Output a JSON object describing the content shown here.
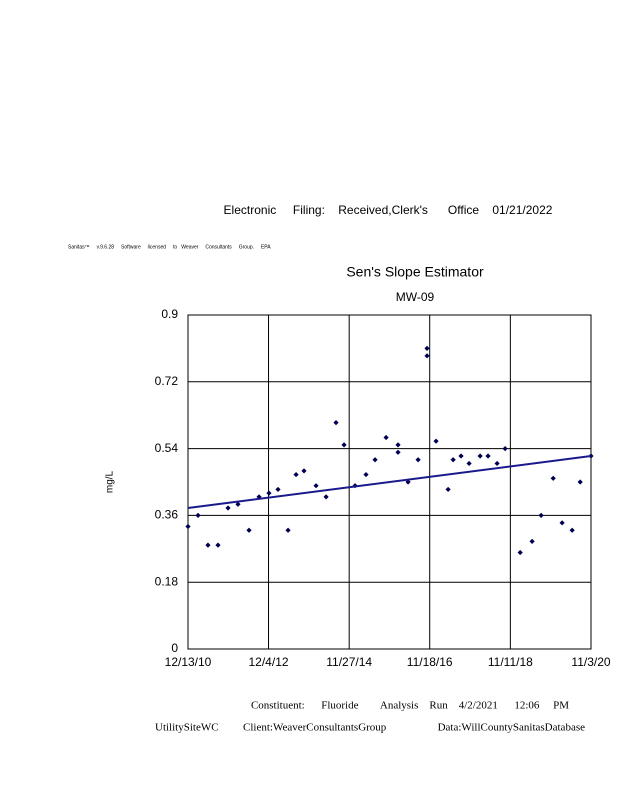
{
  "header": "Electronic     Filing:    Received,Clerk's      Office    01/21/2022",
  "license": "Sanitas™     v.9.6.28     Software     licensed     to   Weaver     Consultants     Group.     EPA",
  "footer": {
    "line1": "Constituent:      Fluoride        Analysis    Run    4/2/2021      12:06     PM",
    "site": "UtilitySiteWC",
    "client": "Client:WeaverConsultantsGroup",
    "database": "Data:WillCountySanitasDatabase"
  },
  "chart_data": {
    "type": "scatter",
    "title": "Sen's Slope Estimator",
    "subtitle": "MW-09",
    "y_label": "mg/L",
    "xlim": [
      0,
      3613
    ],
    "ylim": [
      0,
      0.9
    ],
    "xticks": [
      {
        "value": 0,
        "label": "12/13/10"
      },
      {
        "value": 722,
        "label": "12/4/12"
      },
      {
        "value": 1445,
        "label": "11/27/14"
      },
      {
        "value": 2167,
        "label": "11/18/16"
      },
      {
        "value": 2890,
        "label": "11/11/18"
      },
      {
        "value": 3613,
        "label": "11/3/20"
      }
    ],
    "yticks": [
      0,
      0.18,
      0.36,
      0.54,
      0.72,
      0.9
    ],
    "grid": true,
    "series": [
      {
        "color": "#000050",
        "x": [
          0,
          90,
          179,
          269,
          359,
          448,
          547,
          637,
          726,
          807,
          897,
          969,
          1040,
          1148,
          1238,
          1327,
          1399,
          1498,
          1596,
          1677,
          1776,
          1883,
          1883,
          1973,
          2063,
          2143,
          2143,
          2224,
          2332,
          2377,
          2448,
          2520,
          2619,
          2690,
          2771,
          2843,
          2978,
          3085,
          3166,
          3274,
          3354,
          3444,
          3516,
          3613
        ],
        "values": [
          0.33,
          0.36,
          0.28,
          0.28,
          0.38,
          0.39,
          0.32,
          0.41,
          0.42,
          0.43,
          0.32,
          0.47,
          0.48,
          0.44,
          0.41,
          0.61,
          0.55,
          0.44,
          0.47,
          0.51,
          0.57,
          0.55,
          0.53,
          0.45,
          0.51,
          0.81,
          0.79,
          0.56,
          0.43,
          0.51,
          0.52,
          0.5,
          0.52,
          0.52,
          0.5,
          0.54,
          0.26,
          0.29,
          0.36,
          0.46,
          0.34,
          0.32,
          0.45,
          0.52
        ]
      },
      {
        "type": "line",
        "color": "#1a1a8c",
        "x": [
          0,
          3613
        ],
        "values": [
          0.38,
          0.52
        ]
      }
    ]
  }
}
